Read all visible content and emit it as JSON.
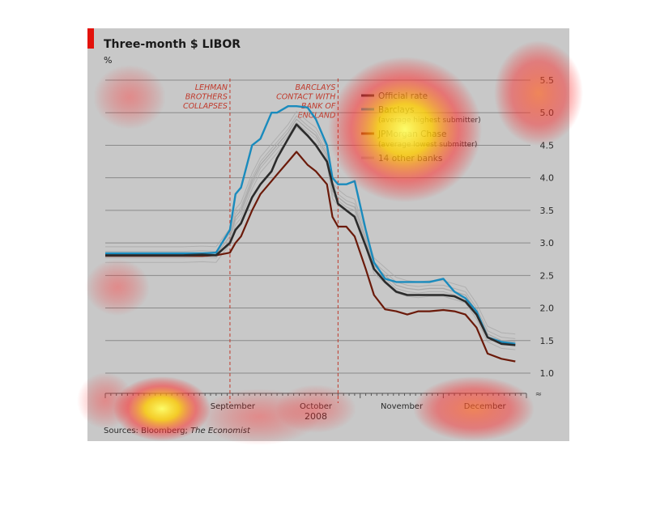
{
  "header": {
    "title": "Three-month $ LIBOR",
    "unit": "%"
  },
  "source": {
    "prefix": "Sources: Bloomberg; ",
    "italic": "The Economist"
  },
  "colors": {
    "official": "#2b2b2b",
    "barclays": "#1a8bbd",
    "jpmorgan": "#6b1a0a",
    "others": "#a9a9a9",
    "event": "#c0392b"
  },
  "chart_data": {
    "type": "line",
    "title": "Three-month $ LIBOR",
    "ylabel": "%",
    "ylim": [
      1.0,
      5.5
    ],
    "yticks": [
      "1.0",
      "1.5",
      "2.0",
      "2.5",
      "3.0",
      "3.5",
      "4.0",
      "4.5",
      "5.0",
      "5.5"
    ],
    "xlabel": "2008",
    "x_month_labels": [
      "September",
      "October",
      "November",
      "December"
    ],
    "annotations": [
      {
        "text": [
          "LEHMAN",
          "BROTHERS",
          "COLLAPSES"
        ],
        "at": "Sep 15"
      },
      {
        "text": [
          "BARCLAYS",
          "CONTACT WITH",
          "BANK OF",
          "ENGLAND"
        ],
        "at": "Oct 24"
      }
    ],
    "legend": [
      {
        "label": "Official rate",
        "sub": ""
      },
      {
        "label": "Barclays",
        "sub": "(average highest submitter)"
      },
      {
        "label": "JPMorgan Chase",
        "sub": "(average lowest submitter)"
      },
      {
        "label": "14 other banks",
        "sub": ""
      }
    ],
    "grid": true,
    "series": [
      {
        "name": "Official rate",
        "x": [
          "Aug 1",
          "Aug 8",
          "Aug 15",
          "Aug 22",
          "Aug 29",
          "Sep 5",
          "Sep 10",
          "Sep 15",
          "Sep 17",
          "Sep 19",
          "Sep 23",
          "Sep 26",
          "Sep 30",
          "Oct 2",
          "Oct 6",
          "Oct 9",
          "Oct 13",
          "Oct 16",
          "Oct 20",
          "Oct 22",
          "Oct 24",
          "Oct 27",
          "Oct 30",
          "Nov 3",
          "Nov 6",
          "Nov 10",
          "Nov 14",
          "Nov 18",
          "Nov 22",
          "Nov 26",
          "Dec 1",
          "Dec 5",
          "Dec 9",
          "Dec 13",
          "Dec 17",
          "Dec 22",
          "Dec 27"
        ],
        "values": [
          2.81,
          2.81,
          2.81,
          2.81,
          2.81,
          2.82,
          2.81,
          3.0,
          3.2,
          3.3,
          3.7,
          3.9,
          4.1,
          4.3,
          4.6,
          4.82,
          4.65,
          4.5,
          4.25,
          3.9,
          3.6,
          3.5,
          3.4,
          2.95,
          2.6,
          2.4,
          2.25,
          2.2,
          2.2,
          2.2,
          2.2,
          2.18,
          2.1,
          1.9,
          1.55,
          1.45,
          1.43
        ]
      },
      {
        "name": "Barclays",
        "x": [
          "Aug 1",
          "Aug 8",
          "Aug 15",
          "Aug 22",
          "Aug 29",
          "Sep 5",
          "Sep 10",
          "Sep 15",
          "Sep 17",
          "Sep 19",
          "Sep 23",
          "Sep 26",
          "Sep 30",
          "Oct 2",
          "Oct 6",
          "Oct 9",
          "Oct 13",
          "Oct 16",
          "Oct 20",
          "Oct 22",
          "Oct 24",
          "Oct 27",
          "Oct 30",
          "Nov 3",
          "Nov 6",
          "Nov 10",
          "Nov 14",
          "Nov 18",
          "Nov 22",
          "Nov 26",
          "Dec 1",
          "Dec 5",
          "Dec 9",
          "Dec 13",
          "Dec 17",
          "Dec 22",
          "Dec 27"
        ],
        "values": [
          2.84,
          2.84,
          2.84,
          2.84,
          2.84,
          2.84,
          2.85,
          3.2,
          3.75,
          3.85,
          4.5,
          4.6,
          5.0,
          5.0,
          5.1,
          5.1,
          5.08,
          4.9,
          4.5,
          4.0,
          3.9,
          3.9,
          3.95,
          3.2,
          2.7,
          2.45,
          2.4,
          2.4,
          2.4,
          2.4,
          2.45,
          2.25,
          2.15,
          1.95,
          1.55,
          1.48,
          1.45
        ]
      },
      {
        "name": "JPMorgan Chase",
        "x": [
          "Aug 1",
          "Aug 8",
          "Aug 15",
          "Aug 22",
          "Aug 29",
          "Sep 5",
          "Sep 10",
          "Sep 15",
          "Sep 17",
          "Sep 19",
          "Sep 23",
          "Sep 26",
          "Sep 30",
          "Oct 2",
          "Oct 6",
          "Oct 9",
          "Oct 13",
          "Oct 16",
          "Oct 20",
          "Oct 22",
          "Oct 24",
          "Oct 27",
          "Oct 30",
          "Nov 3",
          "Nov 6",
          "Nov 10",
          "Nov 14",
          "Nov 18",
          "Nov 22",
          "Nov 26",
          "Dec 1",
          "Dec 5",
          "Dec 9",
          "Dec 13",
          "Dec 17",
          "Dec 22",
          "Dec 27"
        ],
        "values": [
          2.8,
          2.8,
          2.8,
          2.8,
          2.8,
          2.8,
          2.81,
          2.85,
          3.0,
          3.1,
          3.5,
          3.75,
          3.95,
          4.05,
          4.25,
          4.4,
          4.2,
          4.1,
          3.9,
          3.4,
          3.25,
          3.25,
          3.1,
          2.6,
          2.2,
          1.98,
          1.95,
          1.9,
          1.95,
          1.95,
          1.97,
          1.95,
          1.9,
          1.7,
          1.3,
          1.22,
          1.18
        ]
      },
      {
        "name": "14 other banks",
        "x": [
          "Aug 1",
          "Aug 8",
          "Aug 15",
          "Aug 22",
          "Aug 29",
          "Sep 5",
          "Sep 10",
          "Sep 15",
          "Sep 17",
          "Sep 19",
          "Sep 23",
          "Sep 26",
          "Sep 30",
          "Oct 2",
          "Oct 6",
          "Oct 9",
          "Oct 13",
          "Oct 16",
          "Oct 20",
          "Oct 22",
          "Oct 24",
          "Oct 27",
          "Oct 30",
          "Nov 3",
          "Nov 6",
          "Nov 10",
          "Nov 14",
          "Nov 18",
          "Nov 22",
          "Nov 26",
          "Dec 1",
          "Dec 5",
          "Dec 9",
          "Dec 13",
          "Dec 17",
          "Dec 22",
          "Dec 27"
        ],
        "values": [
          2.82,
          2.82,
          2.82,
          2.82,
          2.82,
          2.83,
          2.82,
          3.1,
          3.4,
          3.5,
          3.95,
          4.2,
          4.4,
          4.5,
          4.7,
          4.9,
          4.75,
          4.65,
          4.35,
          3.8,
          3.7,
          3.6,
          3.55,
          3.05,
          2.65,
          2.5,
          2.35,
          2.3,
          2.28,
          2.3,
          2.3,
          2.25,
          2.2,
          1.95,
          1.6,
          1.5,
          1.48
        ]
      }
    ]
  }
}
